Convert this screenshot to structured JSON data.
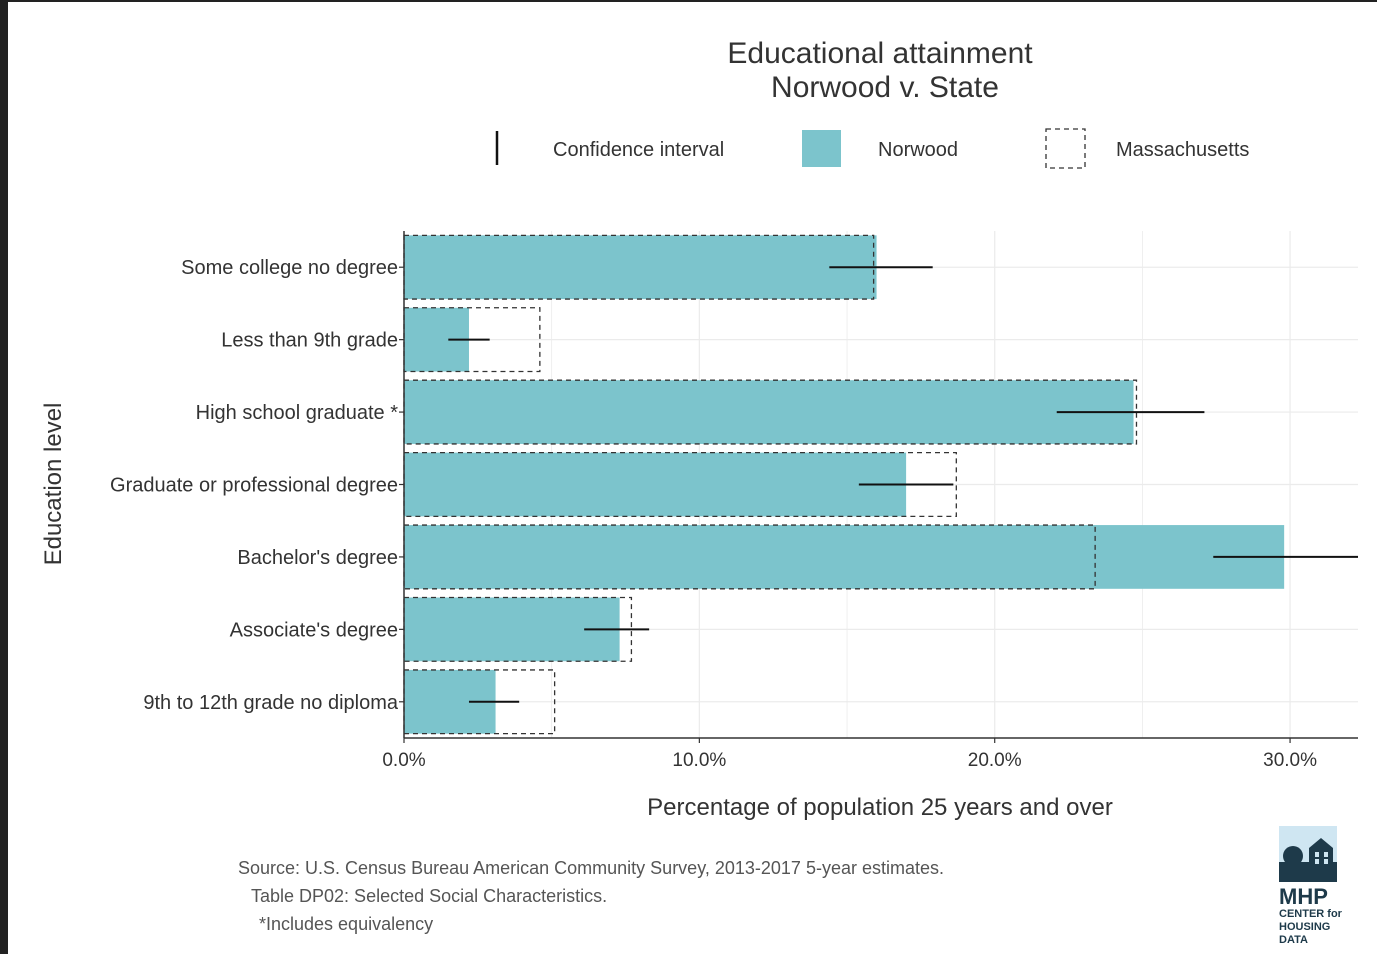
{
  "chart_data": {
    "type": "bar",
    "orientation": "horizontal",
    "title": "Educational attainment",
    "subtitle": "Norwood v. State",
    "xlabel": "Percentage of population 25 years and over",
    "ylabel": "Education level",
    "xlim": [
      0,
      32.3
    ],
    "xticks": [
      0,
      10,
      20,
      30
    ],
    "xtick_labels": [
      "0.0%",
      "10.0%",
      "20.0%",
      "30.0%"
    ],
    "grid": true,
    "legend_position": "top",
    "legend": {
      "ci_label": "Confidence interval",
      "norwood_label": "Norwood",
      "state_label": "Massachusetts"
    },
    "categories": [
      "Some college no degree",
      "Less than 9th grade",
      "High school graduate *",
      "Graduate or professional degree",
      "Bachelor's degree",
      "Associate's degree",
      "9th to 12th grade no diploma"
    ],
    "series": [
      {
        "name": "Norwood",
        "values": [
          16.0,
          2.2,
          24.7,
          17.0,
          29.8,
          7.3,
          3.1
        ],
        "color": "#7cc4cc",
        "ci_low": [
          14.4,
          1.5,
          22.1,
          15.4,
          27.4,
          6.1,
          2.2
        ],
        "ci_high": [
          17.9,
          2.9,
          27.1,
          18.6,
          32.3,
          8.3,
          3.9
        ]
      },
      {
        "name": "Massachusetts",
        "values": [
          15.9,
          4.6,
          24.8,
          18.7,
          23.4,
          7.7,
          5.1
        ],
        "color": "#333333"
      }
    ]
  },
  "footer": {
    "source_line1": "Source: U.S. Census Bureau American Community Survey, 2013-2017 5-year estimates.",
    "source_line2": "Table DP02: Selected Social Characteristics.",
    "source_line3": "*Includes equivalency"
  },
  "logo": {
    "name": "MHP",
    "sub_line1": "CENTER for",
    "sub_line2": "HOUSING DATA"
  }
}
